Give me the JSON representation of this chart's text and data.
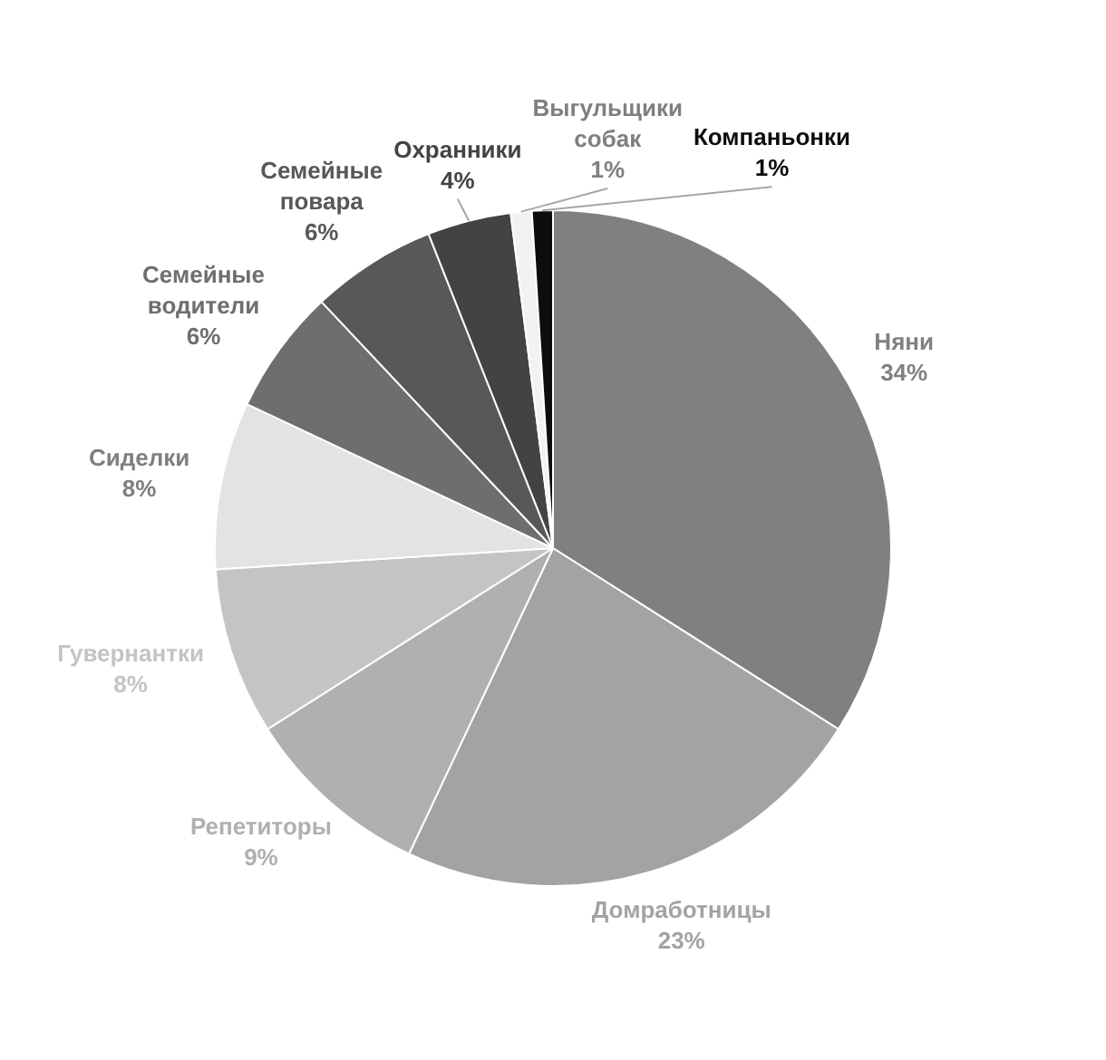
{
  "chart_data": {
    "type": "pie",
    "categories": [
      "Няни",
      "Домработницы",
      "Репетиторы",
      "Гувернантки",
      "Сиделки",
      "Семейные водители",
      "Семейные повара",
      "Охранники",
      "Выгульщики собак",
      "Компаньонки"
    ],
    "values": [
      34,
      23,
      9,
      8,
      8,
      6,
      6,
      4,
      1,
      1
    ],
    "value_labels": [
      "34%",
      "23%",
      "9%",
      "8%",
      "8%",
      "6%",
      "6%",
      "4%",
      "1%",
      "1%"
    ],
    "colors": [
      "#808080",
      "#a3a3a3",
      "#b0b0b0",
      "#c4c4c4",
      "#e3e3e3",
      "#6e6e6e",
      "#585858",
      "#434343",
      "#f2f2f2",
      "#0d0d0d"
    ],
    "legend": false
  }
}
